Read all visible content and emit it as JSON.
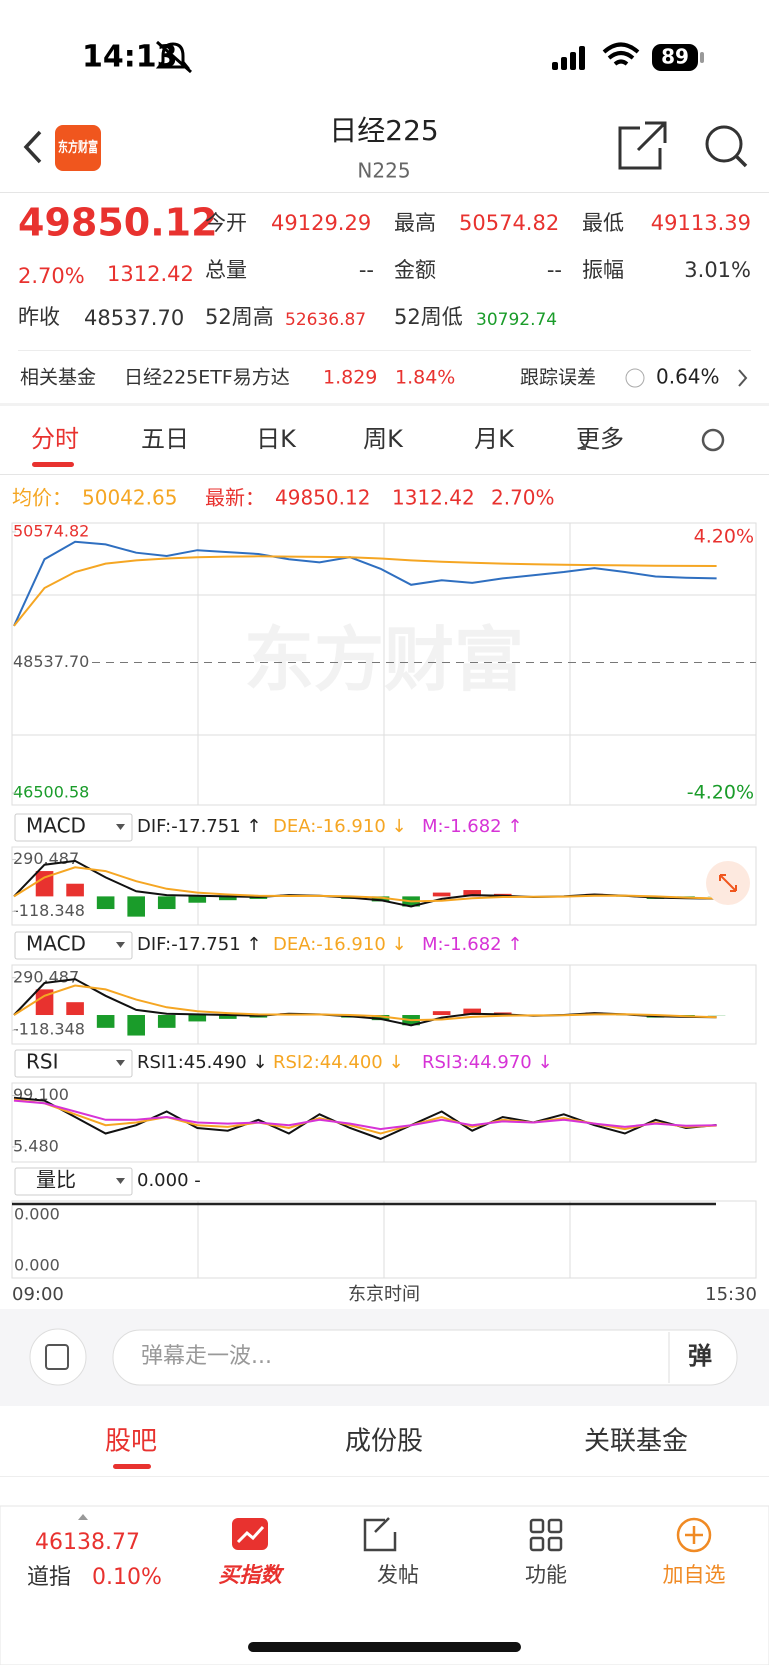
{
  "status_bar": {
    "time": "14:13",
    "battery": "89"
  },
  "header": {
    "title": "日经225",
    "subtitle": "N225",
    "logo": "东方财富"
  },
  "quote": {
    "price": "49850.12",
    "change_pct": "2.70%",
    "change": "1312.42",
    "open_label": "今开",
    "open": "49129.29",
    "high_label": "最高",
    "high": "50574.82",
    "low_label": "最低",
    "low": "49113.39",
    "volume_label": "总量",
    "volume": "--",
    "amount_label": "金额",
    "amount": "--",
    "amplitude_label": "振幅",
    "amplitude": "3.01%",
    "prev_label": "昨收",
    "prev": "48537.70",
    "high52_label": "52周高",
    "high52": "52636.87",
    "low52_label": "52周低",
    "low52": "30792.74"
  },
  "fund": {
    "label": "相关基金",
    "name": "日经225ETF易方达",
    "price": "1.829",
    "pct": "1.84%",
    "tracking_label": "跟踪误差",
    "tracking": "0.64%"
  },
  "tabs": [
    "分时",
    "五日",
    "日K",
    "周K",
    "月K",
    "更多"
  ],
  "summary": {
    "avg_label": "均价：",
    "avg": "50042.65",
    "last_label": "最新：",
    "last": "49850.12",
    "change": "1312.42",
    "pct": "2.70%"
  },
  "chart_data": [
    {
      "type": "line",
      "ylim": [
        46315,
        50714
      ],
      "yticks": [
        50574.82,
        {
          "value": 48537.7,
          "label": "48537.70"
        },
        46500.58
      ],
      "ytick_colors": [
        "#e8322f",
        "#555555",
        "#1a9c2a"
      ],
      "right_labels": [
        "4.20%",
        "-4.20%"
      ],
      "watermark": "东方财富",
      "series": [
        {
          "color": "#2f6fc0",
          "values": [
            49109,
            50150,
            50420,
            50380,
            50250,
            50200,
            50290,
            50260,
            50230,
            50150,
            50100,
            50180,
            50000,
            49750,
            49820,
            49780,
            49850,
            49900,
            49950,
            50010,
            49950,
            49880,
            49860,
            49850
          ]
        },
        {
          "color": "#f5a623",
          "values": [
            49109,
            49700,
            49950,
            50080,
            50130,
            50160,
            50180,
            50190,
            50195,
            50190,
            50185,
            50180,
            50160,
            50130,
            50110,
            50095,
            50080,
            50070,
            50062,
            50058,
            50052,
            50048,
            50045,
            50043
          ]
        }
      ]
    },
    {
      "type": "macd",
      "title": "MACD",
      "legend": [
        "DIF:-17.751 ↑",
        "DEA:-16.910 ↓",
        "M:-1.682 ↑"
      ],
      "legend_colors": [
        "#222222",
        "#f5a623",
        "#d633d6"
      ],
      "ylim": [
        -226,
        390
      ],
      "yticks": [
        290.487,
        -118.348
      ],
      "up_color": "#e8322f",
      "down_color": "#1a9c2a",
      "series": [
        {
          "color": "#111111",
          "values": [
            0,
            250,
            280,
            150,
            40,
            10,
            5,
            0,
            -5,
            10,
            5,
            -10,
            -30,
            -80,
            -20,
            10,
            5,
            -5,
            0,
            15,
            5,
            -10,
            -15,
            -17.751
          ]
        },
        {
          "color": "#f5a623",
          "values": [
            0,
            150,
            230,
            200,
            120,
            60,
            30,
            15,
            5,
            3,
            4,
            0,
            -10,
            -40,
            -35,
            -15,
            -5,
            -3,
            -2,
            5,
            6,
            0,
            -10,
            -16.91
          ]
        }
      ],
      "bars": [
        0,
        200,
        100,
        -100,
        -160,
        -100,
        -50,
        -30,
        -20,
        14,
        2,
        -20,
        -40,
        -80,
        30,
        50,
        20,
        -4,
        4,
        20,
        -2,
        -20,
        -10,
        -1.682
      ]
    },
    {
      "type": "line",
      "title": "RSI",
      "legend": [
        "RSI1:45.490 ↓",
        "RSI2:44.400 ↓",
        "RSI3:44.970 ↓"
      ],
      "legend_colors": [
        "#222222",
        "#f5a623",
        "#d633d6"
      ],
      "ylim": [
        -22,
        122
      ],
      "yticks": [
        {
          "value": 99.1,
          "label": "99.100"
        },
        {
          "value": 5.48,
          "label": "5.480"
        }
      ],
      "ytick_colors": [
        "#555555",
        "#555555"
      ],
      "series": [
        {
          "color": "#111111",
          "values": [
            95,
            90,
            60,
            30,
            45,
            70,
            40,
            35,
            55,
            30,
            65,
            40,
            20,
            45,
            70,
            35,
            60,
            50,
            65,
            45,
            30,
            55,
            40,
            45.49
          ]
        },
        {
          "color": "#f5a623",
          "values": [
            92,
            85,
            65,
            45,
            50,
            60,
            45,
            42,
            50,
            40,
            58,
            45,
            30,
            45,
            60,
            42,
            55,
            50,
            58,
            48,
            38,
            50,
            42,
            44.4
          ]
        },
        {
          "color": "#d633d6",
          "values": [
            90,
            85,
            70,
            55,
            55,
            60,
            50,
            48,
            50,
            45,
            55,
            48,
            38,
            45,
            55,
            45,
            52,
            50,
            55,
            48,
            42,
            48,
            44,
            44.97
          ]
        }
      ]
    }
  ],
  "volume_ratio": {
    "title": "量比",
    "legend": "0.000 -",
    "top": "0.000",
    "bottom": "0.000"
  },
  "x_axis": {
    "start": "09:00",
    "label": "东京时间",
    "end": "15:30"
  },
  "comment": {
    "placeholder": "弹幕走一波...",
    "button": "弹"
  },
  "section_tabs": [
    "股吧",
    "成份股",
    "关联基金"
  ],
  "bottom_nav": {
    "index_value": "46138.77",
    "index_name": "道指",
    "index_pct": "0.10%",
    "items": [
      "买指数",
      "发帖",
      "功能",
      "加自选"
    ]
  }
}
